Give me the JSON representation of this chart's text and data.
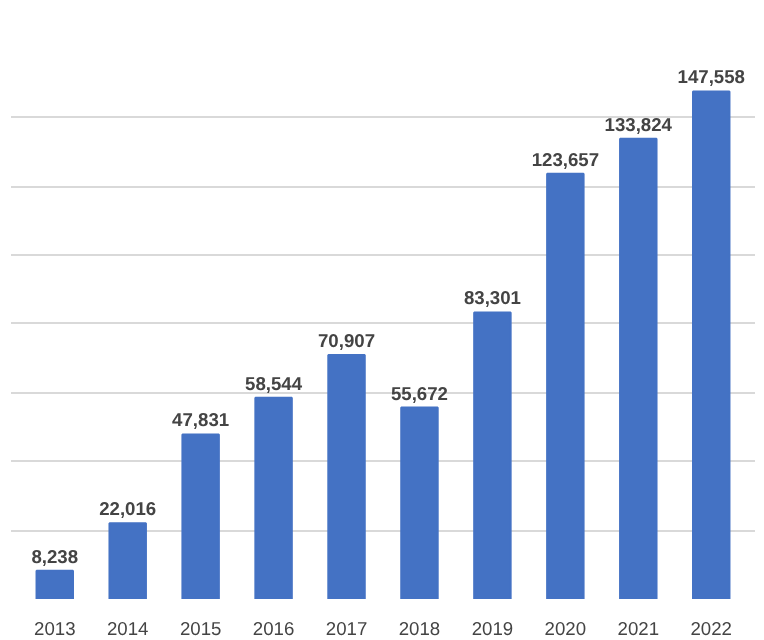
{
  "chart_data": {
    "type": "bar",
    "categories": [
      "2013",
      "2014",
      "2015",
      "2016",
      "2017",
      "2018",
      "2019",
      "2020",
      "2021",
      "2022"
    ],
    "values": [
      8238,
      22016,
      47831,
      58544,
      70907,
      55672,
      83301,
      123657,
      133824,
      147558
    ],
    "value_labels": [
      "8,238",
      "22,016",
      "47,831",
      "58,544",
      "70,907",
      "55,672",
      "83,301",
      "123,657",
      "133,824",
      "147,558"
    ],
    "color": "#4472c4",
    "grid": "y",
    "tick_labels": "x"
  }
}
